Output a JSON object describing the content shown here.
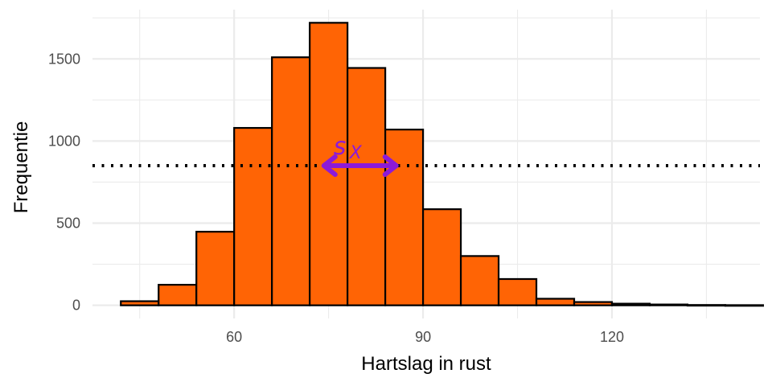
{
  "chart_data": {
    "type": "bar",
    "subtype": "histogram",
    "xlabel": "Hartslag in rust",
    "ylabel": "Frequentie",
    "xlim": [
      37.5,
      143.5
    ],
    "ylim": [
      -80,
      1800
    ],
    "x_ticks": [
      60,
      90,
      120
    ],
    "y_ticks": [
      0,
      500,
      1000,
      1500
    ],
    "x_tick_labels": [
      "60",
      "90",
      "120"
    ],
    "y_tick_labels": [
      "0",
      "500",
      "1000",
      "1500"
    ],
    "grid": true,
    "bin_width": 6,
    "bins": [
      {
        "x0": 42,
        "x1": 48,
        "count": 25
      },
      {
        "x0": 48,
        "x1": 54,
        "count": 125
      },
      {
        "x0": 54,
        "x1": 60,
        "count": 448
      },
      {
        "x0": 60,
        "x1": 66,
        "count": 1080
      },
      {
        "x0": 66,
        "x1": 72,
        "count": 1510
      },
      {
        "x0": 72,
        "x1": 78,
        "count": 1720
      },
      {
        "x0": 78,
        "x1": 84,
        "count": 1445
      },
      {
        "x0": 84,
        "x1": 90,
        "count": 1070
      },
      {
        "x0": 90,
        "x1": 96,
        "count": 585
      },
      {
        "x0": 96,
        "x1": 102,
        "count": 300
      },
      {
        "x0": 102,
        "x1": 108,
        "count": 160
      },
      {
        "x0": 108,
        "x1": 114,
        "count": 40
      },
      {
        "x0": 114,
        "x1": 120,
        "count": 20
      },
      {
        "x0": 120,
        "x1": 126,
        "count": 10
      },
      {
        "x0": 126,
        "x1": 132,
        "count": 5
      },
      {
        "x0": 132,
        "x1": 138,
        "count": 2
      },
      {
        "x0": 138,
        "x1": 144,
        "count": 1
      }
    ],
    "bar_fill": "#ff6405",
    "bar_stroke": "#000000",
    "reference_line": {
      "y": 850,
      "style": "dotted",
      "color": "#000000"
    },
    "annotation": {
      "label_main": "s",
      "label_sub": "X",
      "arrow_from_x": 74,
      "arrow_to_x": 86,
      "y": 850,
      "color": "#8c1ad9"
    }
  }
}
